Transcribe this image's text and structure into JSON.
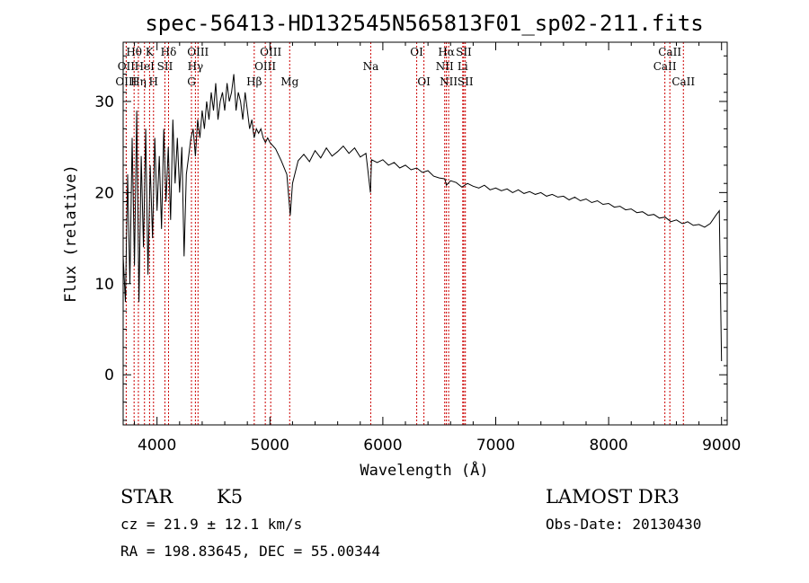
{
  "chart_data": {
    "type": "line",
    "title": "spec-56413-HD132545N565813F01_sp02-211.fits",
    "xlabel": "Wavelength (Å)",
    "ylabel": "Flux (relative)",
    "xlim": [
      3700,
      9050
    ],
    "ylim": [
      -5.5,
      36.5
    ],
    "x_ticks": [
      "4000",
      "5000",
      "6000",
      "7000",
      "8000",
      "9000"
    ],
    "x_tick_values": [
      4000,
      5000,
      6000,
      7000,
      8000,
      9000
    ],
    "y_ticks": [
      "0",
      "10",
      "20",
      "30"
    ],
    "y_tick_values": [
      0,
      10,
      20,
      30
    ],
    "series": [
      {
        "name": "flux",
        "x": [
          3700,
          3720,
          3740,
          3760,
          3780,
          3800,
          3820,
          3840,
          3860,
          3880,
          3900,
          3920,
          3940,
          3960,
          3980,
          4000,
          4020,
          4040,
          4060,
          4080,
          4100,
          4120,
          4140,
          4160,
          4180,
          4200,
          4220,
          4240,
          4260,
          4280,
          4300,
          4320,
          4340,
          4360,
          4380,
          4400,
          4420,
          4440,
          4460,
          4480,
          4500,
          4520,
          4540,
          4560,
          4580,
          4600,
          4620,
          4640,
          4660,
          4680,
          4700,
          4720,
          4740,
          4760,
          4780,
          4800,
          4820,
          4840,
          4860,
          4880,
          4900,
          4920,
          4940,
          4960,
          4980,
          5000,
          5050,
          5100,
          5150,
          5180,
          5200,
          5250,
          5300,
          5350,
          5400,
          5450,
          5500,
          5550,
          5600,
          5650,
          5700,
          5750,
          5800,
          5850,
          5890,
          5900,
          5950,
          6000,
          6050,
          6100,
          6150,
          6200,
          6250,
          6300,
          6350,
          6400,
          6450,
          6500,
          6550,
          6563,
          6600,
          6650,
          6700,
          6750,
          6800,
          6850,
          6900,
          6950,
          7000,
          7050,
          7100,
          7150,
          7200,
          7250,
          7300,
          7350,
          7400,
          7450,
          7500,
          7550,
          7600,
          7650,
          7700,
          7750,
          7800,
          7850,
          7900,
          7950,
          8000,
          8050,
          8100,
          8150,
          8200,
          8250,
          8300,
          8350,
          8400,
          8450,
          8500,
          8542,
          8550,
          8600,
          8650,
          8662,
          8700,
          8750,
          8800,
          8850,
          8900,
          8950,
          8980,
          9000
        ],
        "y": [
          13,
          8,
          22,
          10,
          26,
          12,
          29,
          8,
          24,
          14,
          27,
          11,
          23,
          15,
          26,
          18,
          24,
          16,
          27,
          19,
          25,
          17,
          28,
          21,
          26,
          20,
          25,
          13,
          22,
          24,
          26,
          27,
          24,
          28,
          26,
          29,
          27,
          30,
          28,
          31,
          29,
          32,
          28,
          30,
          31,
          29,
          32,
          30,
          31,
          33,
          29,
          31,
          30,
          28,
          31,
          29,
          27,
          28,
          26,
          27,
          26.5,
          27,
          26,
          25.5,
          26,
          25.5,
          24.8,
          23.5,
          22,
          17.5,
          21,
          23.5,
          24.2,
          23.4,
          24.6,
          23.8,
          24.9,
          24.0,
          24.5,
          25.1,
          24.3,
          24.9,
          23.9,
          24.3,
          20,
          23.6,
          23.3,
          23.6,
          23.0,
          23.3,
          22.7,
          23.0,
          22.5,
          22.7,
          22.2,
          22.4,
          21.8,
          21.6,
          21.5,
          20.8,
          21.3,
          21.1,
          20.6,
          21.0,
          20.7,
          20.5,
          20.8,
          20.3,
          20.5,
          20.2,
          20.4,
          20.0,
          20.3,
          19.9,
          20.1,
          19.8,
          20.0,
          19.6,
          19.8,
          19.5,
          19.6,
          19.2,
          19.5,
          19.1,
          19.3,
          18.9,
          19.1,
          18.7,
          18.8,
          18.4,
          18.5,
          18.1,
          18.2,
          17.8,
          17.9,
          17.5,
          17.6,
          17.2,
          17.3,
          16.9,
          16.8,
          17.0,
          16.6,
          16.6,
          16.8,
          16.4,
          16.5,
          16.2,
          16.6,
          17.5,
          18.0,
          1.5
        ]
      }
    ],
    "lines": [
      {
        "name": "Hθ",
        "x": 3797,
        "row": 1
      },
      {
        "name": "OII",
        "x": 3727,
        "row": 2
      },
      {
        "name": "OIII",
        "x": 3727,
        "row": 3
      },
      {
        "name": "K",
        "x": 3934,
        "row": 1
      },
      {
        "name": "HeI",
        "x": 3889,
        "row": 2
      },
      {
        "name": "Hη",
        "x": 3835,
        "row": 3
      },
      {
        "name": "SII",
        "x": 4070,
        "row": 2
      },
      {
        "name": "H",
        "x": 3969,
        "row": 3
      },
      {
        "name": "Hδ",
        "x": 4102,
        "row": 1
      },
      {
        "name": "OIII",
        "x": 4363,
        "row": 1
      },
      {
        "name": "Hγ",
        "x": 4340,
        "row": 2
      },
      {
        "name": "G",
        "x": 4305,
        "row": 3
      },
      {
        "name": "Hβ",
        "x": 4861,
        "row": 3
      },
      {
        "name": "OIII",
        "x": 5007,
        "row": 1
      },
      {
        "name": "OIII",
        "x": 4959,
        "row": 2
      },
      {
        "name": "Mg",
        "x": 5175,
        "row": 3
      },
      {
        "name": "Na",
        "x": 5893,
        "row": 2
      },
      {
        "name": "OI",
        "x": 6300,
        "row": 1
      },
      {
        "name": "OI",
        "x": 6364,
        "row": 3
      },
      {
        "name": "Hα",
        "x": 6563,
        "row": 1
      },
      {
        "name": "SII",
        "x": 6717,
        "row": 1
      },
      {
        "name": "NII",
        "x": 6548,
        "row": 2
      },
      {
        "name": "Li",
        "x": 6708,
        "row": 2
      },
      {
        "name": "NII",
        "x": 6583,
        "row": 3
      },
      {
        "name": "SII",
        "x": 6731,
        "row": 3
      },
      {
        "name": "CaII",
        "x": 8542,
        "row": 1
      },
      {
        "name": "CaII",
        "x": 8498,
        "row": 2
      },
      {
        "name": "CaII",
        "x": 8662,
        "row": 3
      }
    ]
  },
  "info": {
    "class": "STAR",
    "subclass": "K5",
    "survey": "LAMOST DR3",
    "cz": "cz = 21.9 ± 12.1 km/s",
    "obsdate": "Obs-Date: 20130430",
    "radec": "RA = 198.83645, DEC =  55.00344"
  },
  "colors": {
    "line_marker": "#cc0000",
    "spectrum": "#000000"
  }
}
